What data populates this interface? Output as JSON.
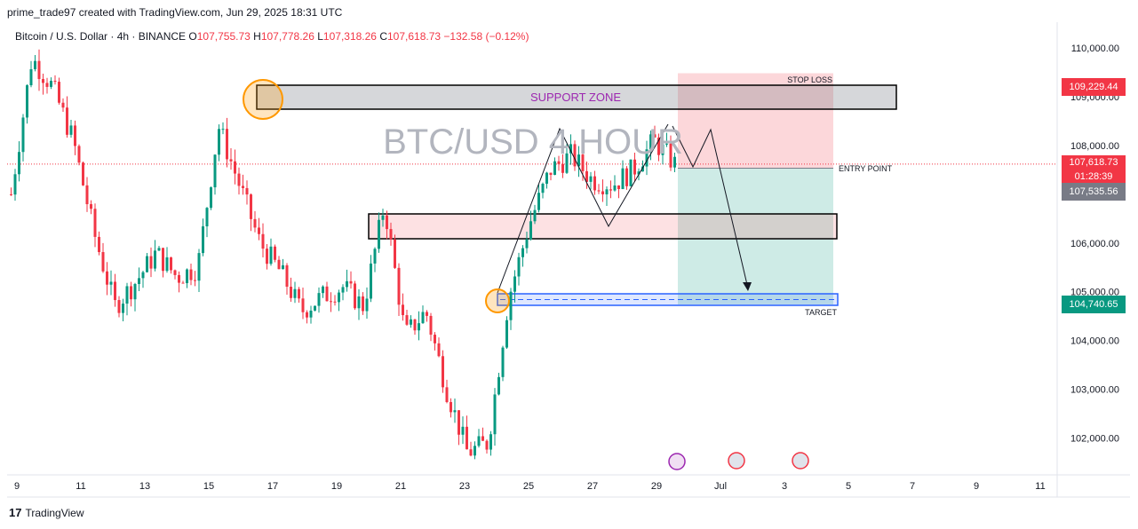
{
  "header": {
    "text": "prime_trade97 created with TradingView.com, Jun 29, 2025 18:31 UTC"
  },
  "legend": {
    "symbol": "Bitcoin / U.S. Dollar · 4h · BINANCE",
    "o_label": "O",
    "o": "107,755.73",
    "h_label": "H",
    "h": "107,778.26",
    "l_label": "L",
    "l": "107,318.26",
    "c_label": "C",
    "c": "107,618.73",
    "change": "−132.58 (−0.12%)"
  },
  "annotations": {
    "watermark": "BTC/USD 4 HOUR",
    "support_zone": "SUPPORT ZONE",
    "stop_loss": "STOP LOSS",
    "entry_point": "ENTRY POINT",
    "target": "TARGET"
  },
  "price_labels": {
    "stop": "109,229.44",
    "last": "107,618.73",
    "countdown": "01:28:39",
    "entry": "107,535.56",
    "target": "104,740.65"
  },
  "colors": {
    "up": "#089981",
    "down": "#f23645",
    "stop_box": "#f23645",
    "entry_box": "#787b86",
    "target_box": "#089981"
  },
  "footer": {
    "brand": "TradingView"
  },
  "chart_data": {
    "type": "candlestick",
    "symbol": "Bitcoin / U.S. Dollar",
    "interval": "4h",
    "exchange": "BINANCE",
    "y_ticks": [
      102000,
      103000,
      104000,
      105000,
      106000,
      107000,
      108000,
      109000,
      110000
    ],
    "y_tick_labels": [
      "102,000.00",
      "103,000.00",
      "104,000.00",
      "105,000.00",
      "106,000.00",
      "107,000.00",
      "108,000.00",
      "109,000.00",
      "110,000.00"
    ],
    "x_tick_labels": [
      "9",
      "11",
      "13",
      "15",
      "17",
      "19",
      "21",
      "23",
      "25",
      "27",
      "29",
      "Jul",
      "3",
      "5",
      "7",
      "9",
      "11"
    ],
    "close_path": [
      107000,
      109800,
      109200,
      108100,
      106200,
      104700,
      105200,
      105800,
      105300,
      105500,
      108400,
      107200,
      106000,
      105400,
      104600,
      104900,
      105100,
      104700,
      106800,
      104100,
      104600,
      103000,
      101700,
      101900,
      104900,
      106400,
      107500,
      107800,
      107300,
      107200,
      107500,
      108100,
      107620
    ],
    "levels": {
      "stop_loss": 109229.44,
      "entry": 107535.56,
      "target": 104740.65,
      "last_price": 107618.73
    }
  }
}
